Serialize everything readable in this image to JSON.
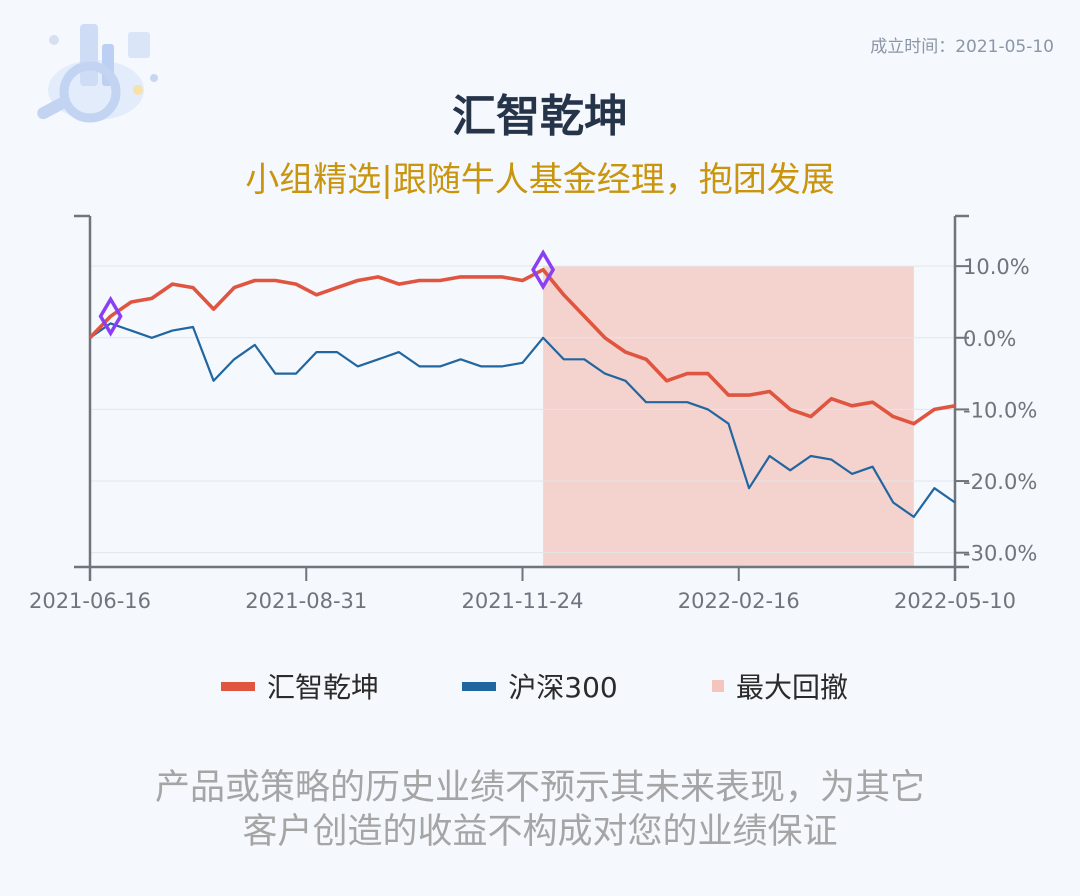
{
  "header": {
    "established": "成立时间：2021-05-10",
    "title": "汇智乾坤",
    "subtitle": "小组精选|跟随牛人基金经理，抱团发展"
  },
  "colors": {
    "fund": "#e0553f",
    "index": "#2266a0",
    "drawdown": "#f3c5bd",
    "marker": "#8a3ff5"
  },
  "chart_data": {
    "type": "line",
    "x_ticks": [
      "2021-06-16",
      "2021-08-31",
      "2021-11-24",
      "2022-02-16",
      "2022-05-10"
    ],
    "y_ticks": [
      "10.0%",
      "0.0%",
      "-10.0%",
      "-20.0%",
      "-30.0%"
    ],
    "ylim": [
      -32,
      17
    ],
    "grid": true,
    "series": [
      {
        "name": "汇智乾坤",
        "values": [
          0,
          3,
          5,
          5.5,
          7.5,
          7,
          4,
          7,
          8,
          8,
          7.5,
          6,
          7,
          8,
          8.5,
          7.5,
          8,
          8,
          8.5,
          8.5,
          8.5,
          8,
          9.5,
          6,
          3,
          0,
          -2,
          -3,
          -6,
          -5,
          -5,
          -8,
          -8,
          -7.5,
          -10,
          -11,
          -8.5,
          -9.5,
          -9,
          -11,
          -12,
          -10,
          -9.5
        ]
      },
      {
        "name": "沪深300",
        "values": [
          0,
          2,
          1,
          0,
          1,
          1.5,
          -6,
          -3,
          -1,
          -5,
          -5,
          -2,
          -2,
          -4,
          -3,
          -2,
          -4,
          -4,
          -3,
          -4,
          -4,
          -3.5,
          0,
          -3,
          -3,
          -5,
          -6,
          -9,
          -9,
          -9,
          -10,
          -12,
          -21,
          -16.5,
          -18.5,
          -16.5,
          -17,
          -19,
          -18,
          -23,
          -25,
          -21,
          -23
        ]
      },
      {
        "name": "最大回撤",
        "start_index": 22,
        "end_index": 40
      }
    ],
    "markers": [
      {
        "series": "汇智乾坤",
        "index": 1
      },
      {
        "series": "汇智乾坤",
        "index": 22
      }
    ],
    "legend_position": "bottom"
  },
  "legend": [
    "汇智乾坤",
    "沪深300",
    "最大回撤"
  ],
  "disclaimer": [
    "产品或策略的历史业绩不预示其未来表现，为其它",
    "客户创造的收益不构成对您的业绩保证"
  ]
}
